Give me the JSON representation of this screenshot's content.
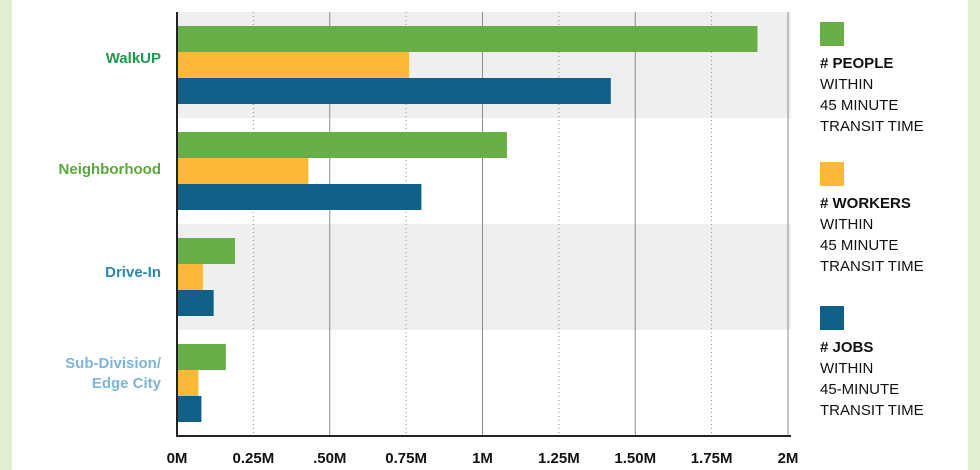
{
  "chart_data": {
    "type": "bar",
    "orientation": "horizontal",
    "categories": [
      "WalkUP",
      "Neighborhood",
      "Drive-In",
      "Sub-Division/ Edge City"
    ],
    "category_colors": [
      "#1e9a4c",
      "#5aa83a",
      "#2b86b5",
      "#7db5d8"
    ],
    "series": [
      {
        "name": "# PEOPLE WITHIN 45 MINUTE TRANSIT TIME",
        "color": "#68ad46",
        "values": [
          1900000,
          1080000,
          190000,
          160000
        ]
      },
      {
        "name": "# WORKERS WITHIN 45 MINUTE TRANSIT TIME",
        "color": "#fbb936",
        "values": [
          760000,
          430000,
          85000,
          70000
        ]
      },
      {
        "name": "# JOBS WITHIN 45-MINUTE TRANSIT TIME",
        "color": "#0f5f86",
        "values": [
          1420000,
          800000,
          120000,
          80000
        ]
      }
    ],
    "x_ticks": [
      {
        "value": 0,
        "label": "0M"
      },
      {
        "value": 250000,
        "label": "0.25M"
      },
      {
        "value": 500000,
        "label": ".50M"
      },
      {
        "value": 750000,
        "label": "0.75M"
      },
      {
        "value": 1000000,
        "label": "1M"
      },
      {
        "value": 1250000,
        "label": "1.25M"
      },
      {
        "value": 1500000,
        "label": "1.50M"
      },
      {
        "value": 1750000,
        "label": "1.75M"
      },
      {
        "value": 2000000,
        "label": "2M"
      }
    ],
    "xlim": [
      0,
      2000000
    ],
    "grid": "vertical",
    "legend_position": "right"
  },
  "legend": [
    {
      "head": "# PEOPLE",
      "lines": [
        "WITHIN",
        "45 MINUTE",
        "TRANSIT TIME"
      ],
      "color": "#68ad46"
    },
    {
      "head": "# WORKERS",
      "lines": [
        "WITHIN",
        "45 MINUTE",
        "TRANSIT TIME"
      ],
      "color": "#fbb936"
    },
    {
      "head": "# JOBS",
      "lines": [
        "WITHIN",
        "45-MINUTE",
        "TRANSIT TIME"
      ],
      "color": "#0f5f86"
    }
  ],
  "colors": {
    "frame": "#e3f0cf",
    "band": "#efefef",
    "grid": "#8c8c8c",
    "axis": "#222222"
  }
}
